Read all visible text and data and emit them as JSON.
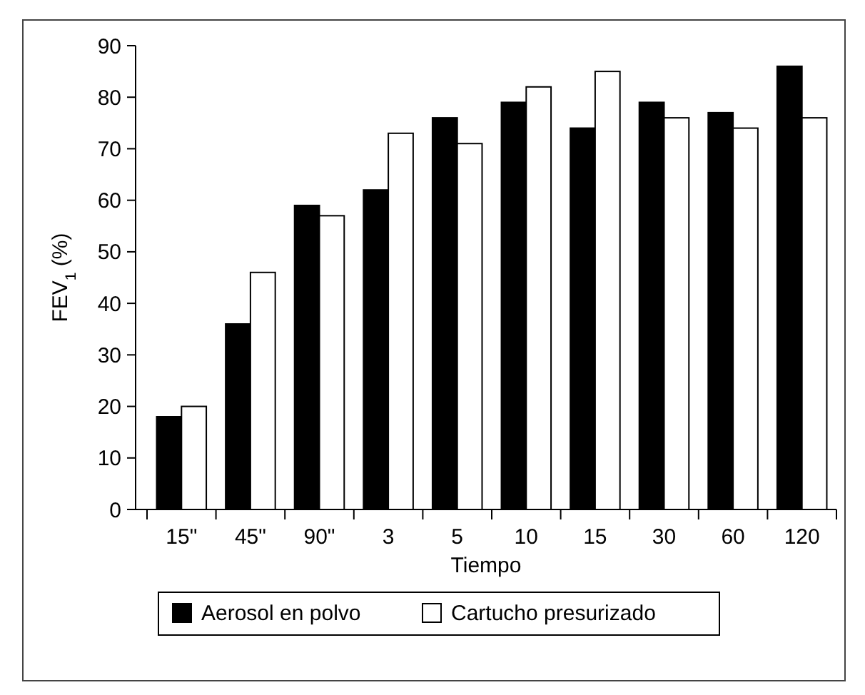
{
  "chart_data": {
    "type": "bar",
    "xlabel": "Tiempo",
    "ylabel": "FEV$_{1}$ (%)",
    "categories": [
      "15\"",
      "45\"",
      "90\"",
      "3",
      "5",
      "10",
      "15",
      "30",
      "60",
      "120"
    ],
    "series": [
      {
        "name": "Aerosol en polvo",
        "color": "#000000",
        "values": [
          18,
          36,
          59,
          62,
          76,
          79,
          74,
          79,
          77,
          86
        ]
      },
      {
        "name": "Cartucho presurizado",
        "color": "#ffffff",
        "values": [
          20,
          46,
          57,
          73,
          71,
          82,
          85,
          76,
          74,
          76
        ]
      }
    ],
    "ylim": [
      0,
      90
    ],
    "yticks": [
      0,
      10,
      20,
      30,
      40,
      50,
      60,
      70,
      80,
      90
    ],
    "legend": "bottom"
  }
}
